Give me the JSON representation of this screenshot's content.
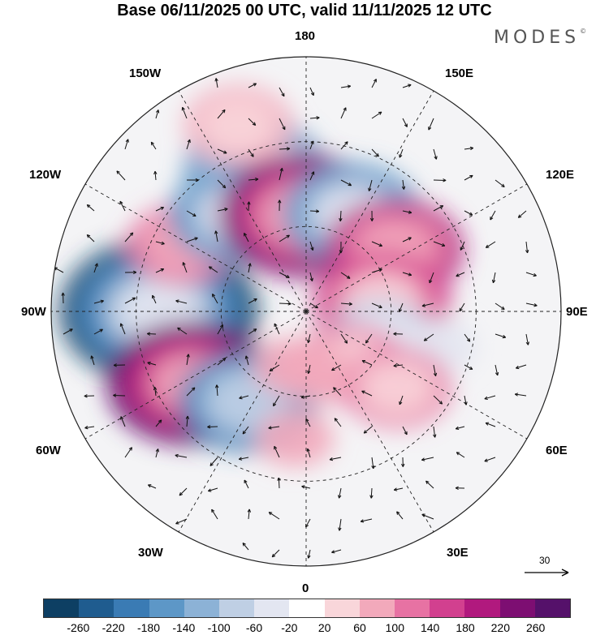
{
  "title": "Base 06/11/2025 00 UTC, valid 11/11/2025 12 UTC",
  "brand": "MODES",
  "brand_mark": "©",
  "longitude_labels": {
    "top": "180",
    "bottom": "0",
    "left": "90W",
    "right": "90E",
    "upper_left_1": "150W",
    "upper_left_2": "120W",
    "upper_right_1": "150E",
    "upper_right_2": "120E",
    "lower_left_1": "60W",
    "lower_left_2": "30W",
    "lower_right_1": "60E",
    "lower_right_2": "30E"
  },
  "wind_reference": "30",
  "colorbar": {
    "colors": [
      "#0d3f63",
      "#1f5c8f",
      "#3a7bb4",
      "#5d97c7",
      "#8cb2d6",
      "#bfcfe4",
      "#e3e6f1",
      "#ffffff",
      "#f9d6da",
      "#f2a9bb",
      "#e772a3",
      "#d2408f",
      "#b1197e",
      "#7d0e72",
      "#55116a"
    ],
    "tick_labels": [
      "-260",
      "-220",
      "-180",
      "-140",
      "-100",
      "-60",
      "-20",
      "20",
      "60",
      "100",
      "140",
      "180",
      "220",
      "260"
    ]
  },
  "anomaly_cells": [
    {
      "lon_deg": 270,
      "colat_deg": 52,
      "value": -270
    },
    {
      "lon_deg": 302,
      "colat_deg": 48,
      "value": 265
    },
    {
      "lon_deg": 327,
      "colat_deg": 38,
      "value": -200
    },
    {
      "lon_deg": 242,
      "colat_deg": 50,
      "value": 130
    },
    {
      "lon_deg": 200,
      "colat_deg": 54,
      "value": -160
    },
    {
      "lon_deg": 215,
      "colat_deg": 42,
      "value": -170
    },
    {
      "lon_deg": 182,
      "colat_deg": 34,
      "value": 250
    },
    {
      "lon_deg": 155,
      "colat_deg": 38,
      "value": -170
    },
    {
      "lon_deg": 125,
      "colat_deg": 38,
      "value": 180
    },
    {
      "lon_deg": 97,
      "colat_deg": 27,
      "value": 160
    },
    {
      "lon_deg": 70,
      "colat_deg": 28,
      "value": -100
    },
    {
      "lon_deg": 75,
      "colat_deg": 48,
      "value": -60
    },
    {
      "lon_deg": 40,
      "colat_deg": 24,
      "value": 110
    },
    {
      "lon_deg": 50,
      "colat_deg": 42,
      "value": 100
    },
    {
      "lon_deg": 8,
      "colat_deg": 22,
      "value": 70
    },
    {
      "lon_deg": 345,
      "colat_deg": 20,
      "value": 80
    },
    {
      "lon_deg": 355,
      "colat_deg": 45,
      "value": 60
    },
    {
      "lon_deg": 200,
      "colat_deg": 70,
      "value": 90
    }
  ]
}
